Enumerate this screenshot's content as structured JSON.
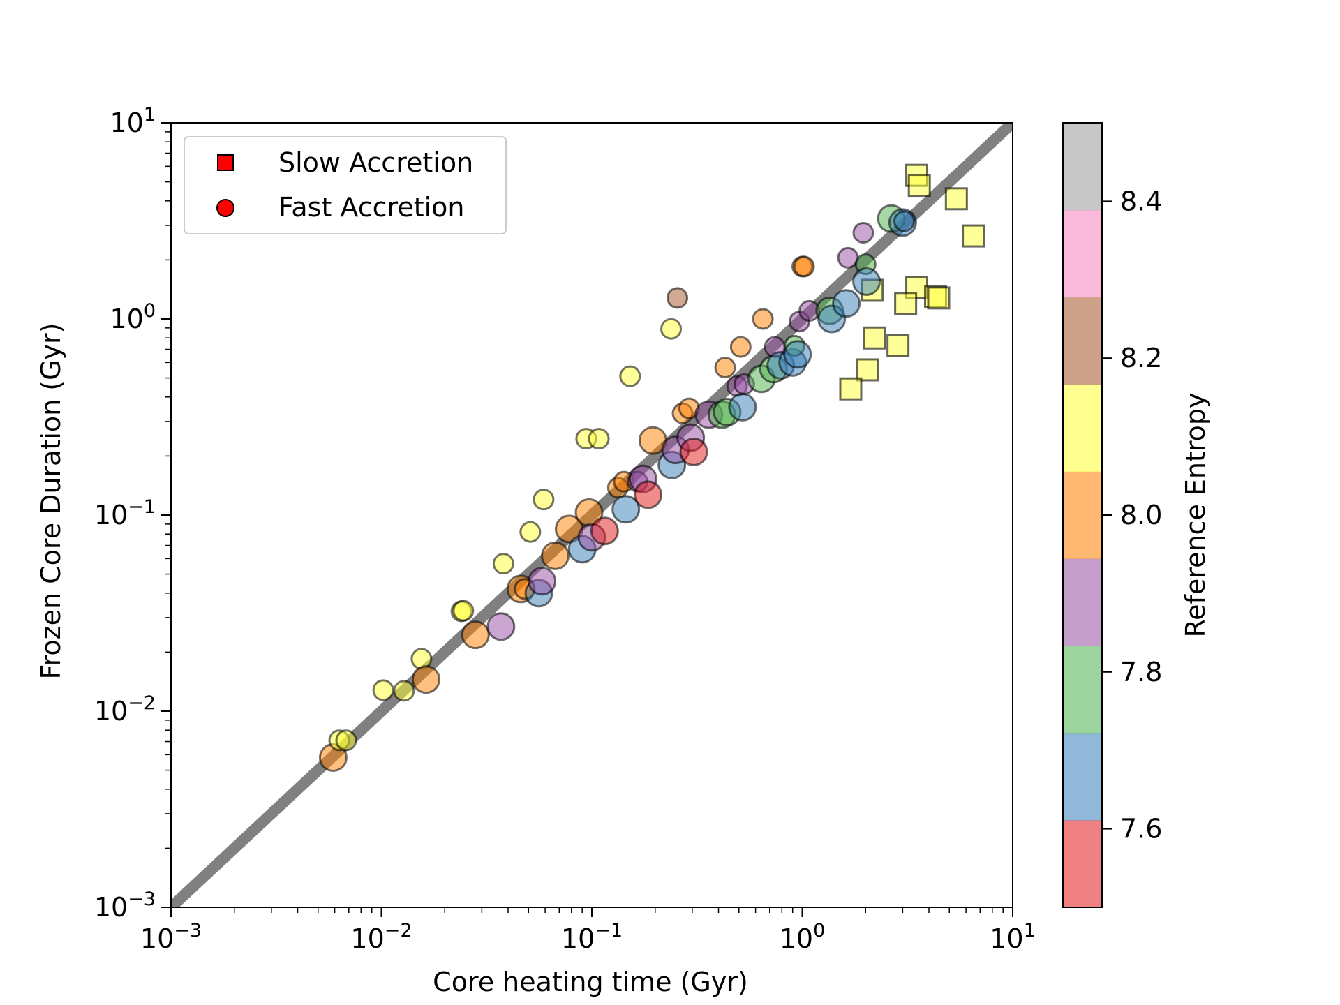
{
  "chart_data": {
    "type": "scatter",
    "xscale": "log",
    "yscale": "log",
    "xlim": [
      0.001,
      10
    ],
    "ylim": [
      0.001,
      10
    ],
    "xlabel": "Core heating time (Gyr)",
    "ylabel": "Frozen Core Duration (Gyr)",
    "x_ticks": [
      {
        "base": "10",
        "exp": "−3",
        "value": 0.001
      },
      {
        "base": "10",
        "exp": "−2",
        "value": 0.01
      },
      {
        "base": "10",
        "exp": "−1",
        "value": 0.1
      },
      {
        "base": "10",
        "exp": "0",
        "value": 1
      },
      {
        "base": "10",
        "exp": "1",
        "value": 10
      }
    ],
    "y_ticks": [
      {
        "base": "10",
        "exp": "−3",
        "value": 0.001
      },
      {
        "base": "10",
        "exp": "−2",
        "value": 0.01
      },
      {
        "base": "10",
        "exp": "−1",
        "value": 0.1
      },
      {
        "base": "10",
        "exp": "0",
        "value": 1
      },
      {
        "base": "10",
        "exp": "1",
        "value": 10
      }
    ],
    "reference_line": {
      "type": "y=x",
      "from": 0.001,
      "to": 10,
      "color": "#808080"
    },
    "legend": {
      "placement": "top-left",
      "entries": [
        {
          "label": "Slow Accretion",
          "marker": "square",
          "color": "#ff0000"
        },
        {
          "label": "Fast Accretion",
          "marker": "circle",
          "color": "#ff0000"
        }
      ]
    },
    "colorbar": {
      "label": "Reference Entropy",
      "range": [
        7.5,
        8.5
      ],
      "ticks": [
        "7.6",
        "7.8",
        "8.0",
        "8.2",
        "8.4"
      ],
      "tick_values": [
        7.6,
        7.8,
        8.0,
        8.2,
        8.4
      ],
      "colors": [
        "#e41a1c",
        "#377eb8",
        "#4daf4a",
        "#984ea3",
        "#ff7f00",
        "#ffff33",
        "#a65628",
        "#f781bf",
        "#999999"
      ]
    },
    "series": [
      {
        "name": "Slow Accretion",
        "marker": "square",
        "points": [
          {
            "x": 3.5,
            "y": 5.4,
            "s": 8.1
          },
          {
            "x": 3.6,
            "y": 4.8,
            "s": 8.1
          },
          {
            "x": 5.4,
            "y": 4.1,
            "s": 8.1
          },
          {
            "x": 6.5,
            "y": 2.65,
            "s": 8.1
          },
          {
            "x": 2.15,
            "y": 1.4,
            "s": 8.1
          },
          {
            "x": 3.5,
            "y": 1.45,
            "s": 8.1
          },
          {
            "x": 3.1,
            "y": 1.2,
            "s": 8.1
          },
          {
            "x": 4.3,
            "y": 1.3,
            "s": 8.1
          },
          {
            "x": 4.45,
            "y": 1.28,
            "s": 8.1
          },
          {
            "x": 2.2,
            "y": 0.8,
            "s": 8.1
          },
          {
            "x": 2.85,
            "y": 0.73,
            "s": 8.1
          },
          {
            "x": 2.05,
            "y": 0.55,
            "s": 8.1
          },
          {
            "x": 1.7,
            "y": 0.44,
            "s": 8.1
          }
        ]
      },
      {
        "name": "Fast Accretion",
        "marker": "circle",
        "points": [
          {
            "x": 0.0059,
            "y": 0.0058,
            "s": 8.0,
            "size": "l"
          },
          {
            "x": 0.0063,
            "y": 0.0071,
            "s": 8.1,
            "size": "m"
          },
          {
            "x": 0.0068,
            "y": 0.0071,
            "s": 8.1,
            "size": "m"
          },
          {
            "x": 0.0102,
            "y": 0.0128,
            "s": 8.1,
            "size": "m"
          },
          {
            "x": 0.0128,
            "y": 0.0127,
            "s": 8.1,
            "size": "m"
          },
          {
            "x": 0.0155,
            "y": 0.0185,
            "s": 8.1,
            "size": "m"
          },
          {
            "x": 0.0163,
            "y": 0.0145,
            "s": 8.0,
            "size": "l"
          },
          {
            "x": 0.024,
            "y": 0.0323,
            "s": 8.1,
            "size": "m"
          },
          {
            "x": 0.0245,
            "y": 0.0325,
            "s": 8.1,
            "size": "m"
          },
          {
            "x": 0.028,
            "y": 0.0245,
            "s": 8.0,
            "size": "l"
          },
          {
            "x": 0.037,
            "y": 0.027,
            "s": 7.9,
            "size": "l"
          },
          {
            "x": 0.038,
            "y": 0.0565,
            "s": 8.1,
            "size": "m"
          },
          {
            "x": 0.046,
            "y": 0.042,
            "s": 8.0,
            "size": "l"
          },
          {
            "x": 0.048,
            "y": 0.042,
            "s": 8.0,
            "size": "m"
          },
          {
            "x": 0.051,
            "y": 0.082,
            "s": 8.1,
            "size": "m"
          },
          {
            "x": 0.056,
            "y": 0.04,
            "s": 7.7,
            "size": "l"
          },
          {
            "x": 0.058,
            "y": 0.046,
            "s": 7.9,
            "size": "l"
          },
          {
            "x": 0.059,
            "y": 0.12,
            "s": 8.1,
            "size": "m"
          },
          {
            "x": 0.067,
            "y": 0.062,
            "s": 8.0,
            "size": "l"
          },
          {
            "x": 0.078,
            "y": 0.085,
            "s": 8.0,
            "size": "l"
          },
          {
            "x": 0.09,
            "y": 0.067,
            "s": 7.7,
            "size": "l"
          },
          {
            "x": 0.094,
            "y": 0.245,
            "s": 8.1,
            "size": "m"
          },
          {
            "x": 0.097,
            "y": 0.103,
            "s": 8.0,
            "size": "l"
          },
          {
            "x": 0.1,
            "y": 0.077,
            "s": 7.9,
            "size": "l"
          },
          {
            "x": 0.108,
            "y": 0.245,
            "s": 8.1,
            "size": "m"
          },
          {
            "x": 0.115,
            "y": 0.083,
            "s": 7.6,
            "size": "l"
          },
          {
            "x": 0.133,
            "y": 0.138,
            "s": 8.0,
            "size": "m"
          },
          {
            "x": 0.142,
            "y": 0.148,
            "s": 8.0,
            "size": "m"
          },
          {
            "x": 0.145,
            "y": 0.107,
            "s": 7.7,
            "size": "l"
          },
          {
            "x": 0.152,
            "y": 0.51,
            "s": 8.1,
            "size": "m"
          },
          {
            "x": 0.165,
            "y": 0.148,
            "s": 7.9,
            "size": "m"
          },
          {
            "x": 0.175,
            "y": 0.153,
            "s": 7.9,
            "size": "l"
          },
          {
            "x": 0.185,
            "y": 0.127,
            "s": 7.6,
            "size": "l"
          },
          {
            "x": 0.195,
            "y": 0.24,
            "s": 8.0,
            "size": "l"
          },
          {
            "x": 0.238,
            "y": 0.89,
            "s": 8.1,
            "size": "m"
          },
          {
            "x": 0.24,
            "y": 0.18,
            "s": 7.7,
            "size": "l"
          },
          {
            "x": 0.25,
            "y": 0.215,
            "s": 7.9,
            "size": "l"
          },
          {
            "x": 0.255,
            "y": 1.28,
            "s": 8.2,
            "size": "m"
          },
          {
            "x": 0.27,
            "y": 0.33,
            "s": 8.0,
            "size": "m"
          },
          {
            "x": 0.29,
            "y": 0.35,
            "s": 8.0,
            "size": "m"
          },
          {
            "x": 0.295,
            "y": 0.248,
            "s": 7.9,
            "size": "l"
          },
          {
            "x": 0.305,
            "y": 0.21,
            "s": 7.6,
            "size": "l"
          },
          {
            "x": 0.36,
            "y": 0.325,
            "s": 7.9,
            "size": "l"
          },
          {
            "x": 0.415,
            "y": 0.325,
            "s": 7.8,
            "size": "l"
          },
          {
            "x": 0.43,
            "y": 0.565,
            "s": 8.0,
            "size": "m"
          },
          {
            "x": 0.44,
            "y": 0.335,
            "s": 7.8,
            "size": "l"
          },
          {
            "x": 0.49,
            "y": 0.455,
            "s": 7.9,
            "size": "m"
          },
          {
            "x": 0.51,
            "y": 0.72,
            "s": 8.0,
            "size": "m"
          },
          {
            "x": 0.52,
            "y": 0.355,
            "s": 7.7,
            "size": "l"
          },
          {
            "x": 0.53,
            "y": 0.465,
            "s": 7.9,
            "size": "m"
          },
          {
            "x": 0.64,
            "y": 0.495,
            "s": 7.8,
            "size": "l"
          },
          {
            "x": 0.65,
            "y": 1.0,
            "s": 8.0,
            "size": "m"
          },
          {
            "x": 0.73,
            "y": 0.555,
            "s": 7.8,
            "size": "l"
          },
          {
            "x": 0.74,
            "y": 0.72,
            "s": 7.9,
            "size": "m"
          },
          {
            "x": 0.79,
            "y": 0.58,
            "s": 7.7,
            "size": "l"
          },
          {
            "x": 0.9,
            "y": 0.6,
            "s": 7.7,
            "size": "l"
          },
          {
            "x": 0.92,
            "y": 0.73,
            "s": 7.8,
            "size": "m"
          },
          {
            "x": 0.95,
            "y": 0.66,
            "s": 7.7,
            "size": "l"
          },
          {
            "x": 0.97,
            "y": 0.97,
            "s": 7.9,
            "size": "m"
          },
          {
            "x": 1.0,
            "y": 1.85,
            "s": 8.0,
            "size": "m"
          },
          {
            "x": 1.02,
            "y": 1.85,
            "s": 8.0,
            "size": "m"
          },
          {
            "x": 1.08,
            "y": 1.1,
            "s": 7.9,
            "size": "m"
          },
          {
            "x": 1.35,
            "y": 1.1,
            "s": 7.8,
            "size": "l"
          },
          {
            "x": 1.38,
            "y": 1.0,
            "s": 7.7,
            "size": "l"
          },
          {
            "x": 1.62,
            "y": 1.2,
            "s": 7.7,
            "size": "l"
          },
          {
            "x": 1.65,
            "y": 2.05,
            "s": 7.9,
            "size": "m"
          },
          {
            "x": 1.95,
            "y": 2.75,
            "s": 7.9,
            "size": "m"
          },
          {
            "x": 2.0,
            "y": 1.9,
            "s": 7.8,
            "size": "m"
          },
          {
            "x": 2.02,
            "y": 1.55,
            "s": 7.7,
            "size": "l"
          },
          {
            "x": 2.65,
            "y": 3.25,
            "s": 7.8,
            "size": "l"
          },
          {
            "x": 3.0,
            "y": 3.1,
            "s": 7.7,
            "size": "l"
          },
          {
            "x": 3.05,
            "y": 3.15,
            "s": 7.7,
            "size": "m"
          }
        ]
      }
    ]
  }
}
